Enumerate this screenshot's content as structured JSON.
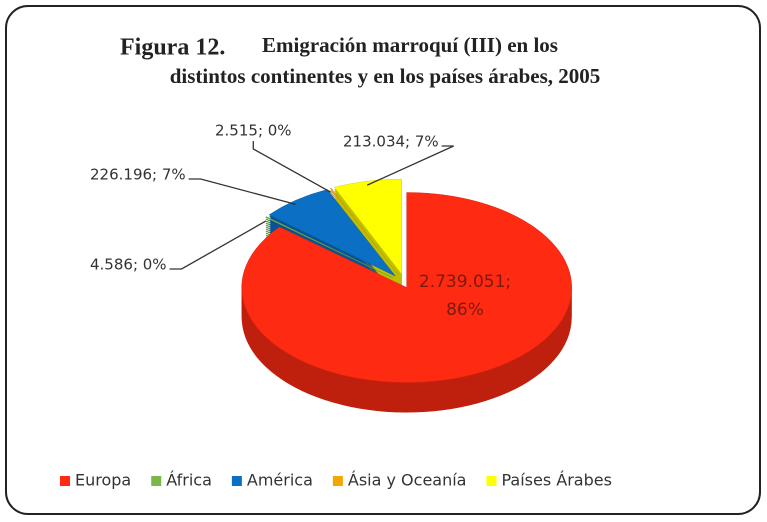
{
  "chart_data": {
    "type": "pie",
    "figure_label": "Figura 12.",
    "title": [
      "Emigración marroquí (III) en los",
      "distintos continentes y en los países árabes, 2005"
    ],
    "categories": [
      "Europa",
      "África",
      "América",
      "Ásia y Oceanía",
      "Países Árabes"
    ],
    "values": [
      2739051,
      4586,
      226196,
      2515,
      213034
    ],
    "value_labels": [
      "2.739.051; 86%",
      "4.586; 0%",
      "226.196; 7%",
      "2.515; 0%",
      "213.034; 7%"
    ],
    "colors": [
      "#ff2a12",
      "#7ab648",
      "#0b6fc4",
      "#f2a800",
      "#ffff00"
    ],
    "legend": "bottom"
  }
}
